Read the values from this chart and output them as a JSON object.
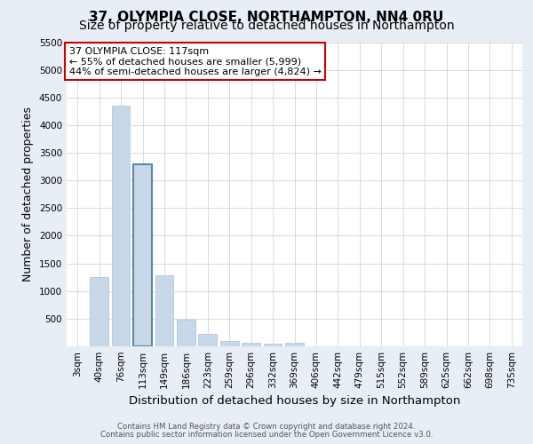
{
  "title_line1": "37, OLYMPIA CLOSE, NORTHAMPTON, NN4 0RU",
  "title_line2": "Size of property relative to detached houses in Northampton",
  "xlabel": "Distribution of detached houses by size in Northampton",
  "ylabel": "Number of detached properties",
  "footnote_line1": "Contains HM Land Registry data © Crown copyright and database right 2024.",
  "footnote_line2": "Contains public sector information licensed under the Open Government Licence v3.0.",
  "annotation_title": "37 OLYMPIA CLOSE: 117sqm",
  "annotation_line2": "← 55% of detached houses are smaller (5,999)",
  "annotation_line3": "44% of semi-detached houses are larger (4,824) →",
  "bar_color": "#c8d8e8",
  "bar_edge_color": "#a8c0d8",
  "highlight_bar_index": 3,
  "highlight_bar_edge_color": "#5588aa",
  "categories": [
    "3sqm",
    "40sqm",
    "76sqm",
    "113sqm",
    "149sqm",
    "186sqm",
    "223sqm",
    "259sqm",
    "296sqm",
    "332sqm",
    "369sqm",
    "406sqm",
    "442sqm",
    "479sqm",
    "515sqm",
    "552sqm",
    "589sqm",
    "625sqm",
    "662sqm",
    "698sqm",
    "735sqm"
  ],
  "values": [
    0,
    1250,
    4350,
    3300,
    1280,
    480,
    220,
    100,
    65,
    50,
    60,
    0,
    0,
    0,
    0,
    0,
    0,
    0,
    0,
    0,
    0
  ],
  "ylim": [
    0,
    5500
  ],
  "yticks": [
    0,
    500,
    1000,
    1500,
    2000,
    2500,
    3000,
    3500,
    4000,
    4500,
    5000,
    5500
  ],
  "background_color": "#e8eef5",
  "plot_bg_color": "#ffffff",
  "grid_color": "#cccccc",
  "title_fontsize": 11,
  "subtitle_fontsize": 10,
  "axis_label_fontsize": 9,
  "tick_fontsize": 7.5,
  "annotation_box_edge_color": "#cc0000",
  "annotation_box_facecolor": "#ffffff",
  "annotation_fontsize": 8
}
